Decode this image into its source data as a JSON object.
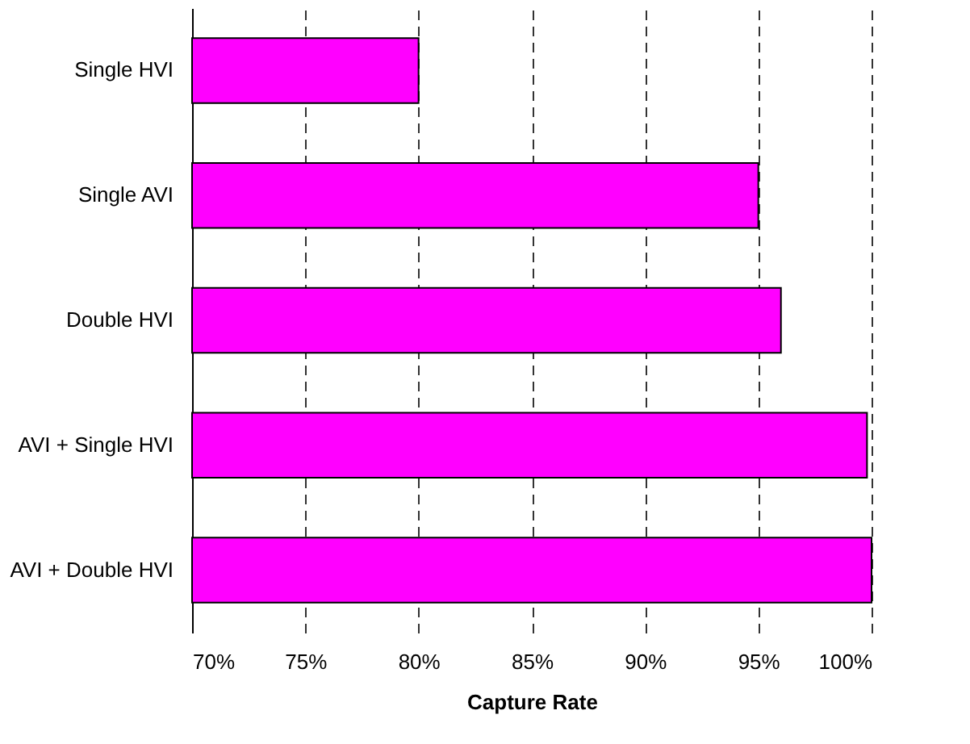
{
  "chart_data": {
    "type": "bar",
    "orientation": "horizontal",
    "categories": [
      "Single HVI",
      "Single AVI",
      "Double HVI",
      "AVI + Single HVI",
      "AVI + Double HVI"
    ],
    "values": [
      80,
      95,
      96,
      99.8,
      100
    ],
    "color": "#ff00ff",
    "xlabel": "Capture Rate",
    "xlim": [
      70,
      100
    ],
    "xticks": [
      {
        "value": 70,
        "label": "70%"
      },
      {
        "value": 75,
        "label": "75%"
      },
      {
        "value": 80,
        "label": "80%"
      },
      {
        "value": 85,
        "label": "85%"
      },
      {
        "value": 90,
        "label": "90%"
      },
      {
        "value": 95,
        "label": "95%"
      },
      {
        "value": 100,
        "label": "100%"
      }
    ],
    "grid": "x",
    "line_style": "dashed"
  }
}
